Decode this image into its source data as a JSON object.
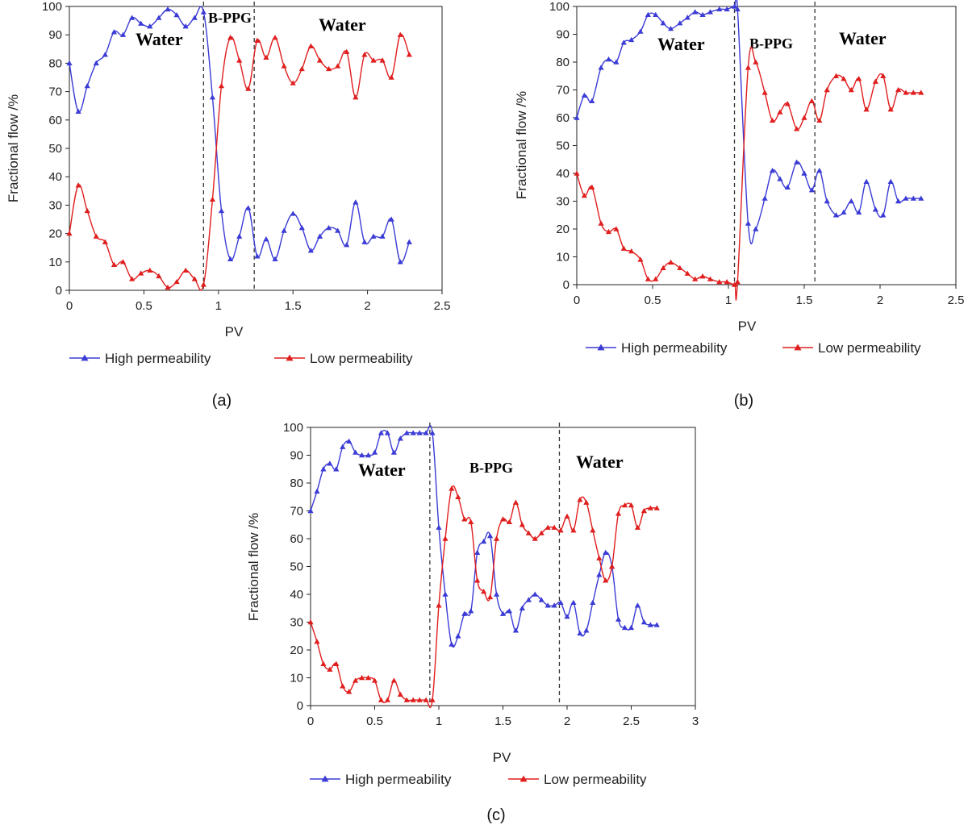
{
  "chart_data": [
    {
      "type": "line",
      "panel_label": "(a)",
      "xlabel": "PV",
      "ylabel": "Fractional flow /%",
      "xlim": [
        0,
        2.5
      ],
      "ylim": [
        0,
        100
      ],
      "x_ticks": [
        "0",
        "0.5",
        "1",
        "1.5",
        "2",
        "2.5"
      ],
      "y_ticks": [
        "0",
        "10",
        "20",
        "30",
        "40",
        "50",
        "60",
        "70",
        "80",
        "90",
        "100"
      ],
      "legend": [
        "High permeability",
        "Low permeability"
      ],
      "region_labels": [
        "Water",
        "B-PPG",
        "Water"
      ],
      "dividers": [
        0.9,
        1.24
      ],
      "series": [
        {
          "name": "High permeability",
          "color": "#3b3bd6",
          "x": [
            0,
            0.06,
            0.12,
            0.18,
            0.24,
            0.3,
            0.36,
            0.42,
            0.48,
            0.54,
            0.6,
            0.66,
            0.72,
            0.78,
            0.84,
            0.9,
            0.96,
            1.02,
            1.08,
            1.14,
            1.2,
            1.26,
            1.32,
            1.38,
            1.44,
            1.5,
            1.56,
            1.62,
            1.68,
            1.74,
            1.8,
            1.86,
            1.92,
            1.98,
            2.04,
            2.1,
            2.16,
            2.22,
            2.28
          ],
          "y": [
            80,
            63,
            72,
            80,
            83,
            91,
            90,
            96,
            94,
            93,
            96,
            99,
            97,
            93,
            96,
            98,
            68,
            28,
            11,
            19,
            29,
            12,
            18,
            11,
            21,
            27,
            22,
            14,
            19,
            22,
            21,
            16,
            31,
            17,
            19,
            19,
            25,
            10,
            17
          ]
        },
        {
          "name": "Low permeability",
          "color": "#e01e1e",
          "x": [
            0,
            0.06,
            0.12,
            0.18,
            0.24,
            0.3,
            0.36,
            0.42,
            0.48,
            0.54,
            0.6,
            0.66,
            0.72,
            0.78,
            0.84,
            0.9,
            0.96,
            1.02,
            1.08,
            1.14,
            1.2,
            1.26,
            1.32,
            1.38,
            1.44,
            1.5,
            1.56,
            1.62,
            1.68,
            1.74,
            1.8,
            1.86,
            1.92,
            1.98,
            2.04,
            2.1,
            2.16,
            2.22,
            2.28
          ],
          "y": [
            20,
            37,
            28,
            19,
            17,
            9,
            10,
            4,
            6,
            7,
            5,
            1,
            3,
            7,
            4,
            2,
            32,
            72,
            89,
            81,
            71,
            88,
            82,
            89,
            79,
            73,
            78,
            86,
            81,
            78,
            79,
            84,
            68,
            83,
            81,
            81,
            75,
            90,
            83
          ]
        }
      ]
    },
    {
      "type": "line",
      "panel_label": "(b)",
      "xlabel": "PV",
      "ylabel": "Fractional flow /%",
      "xlim": [
        0,
        2.5
      ],
      "ylim": [
        0,
        100
      ],
      "x_ticks": [
        "0",
        "0.5",
        "1",
        "1.5",
        "2",
        "2.5"
      ],
      "y_ticks": [
        "0",
        "10",
        "20",
        "30",
        "40",
        "50",
        "60",
        "70",
        "80",
        "90",
        "100"
      ],
      "legend": [
        "High permeability",
        "Low permeability"
      ],
      "region_labels": [
        "Water",
        "B-PPG",
        "Water"
      ],
      "dividers": [
        1.04,
        1.57
      ],
      "series": [
        {
          "name": "High permeability",
          "color": "#3b3bd6",
          "x": [
            0,
            0.05,
            0.1,
            0.16,
            0.21,
            0.26,
            0.31,
            0.36,
            0.42,
            0.47,
            0.52,
            0.57,
            0.62,
            0.68,
            0.73,
            0.78,
            0.83,
            0.88,
            0.94,
            0.99,
            1.04,
            1.06,
            1.13,
            1.18,
            1.24,
            1.29,
            1.34,
            1.39,
            1.45,
            1.5,
            1.55,
            1.6,
            1.65,
            1.71,
            1.76,
            1.81,
            1.86,
            1.91,
            1.97,
            2.02,
            2.07,
            2.12,
            2.17,
            2.22,
            2.27
          ],
          "y": [
            60,
            68,
            66,
            78,
            81,
            80,
            87,
            88,
            91,
            97,
            97,
            94,
            92,
            94,
            96,
            98,
            97,
            98,
            99,
            99,
            100,
            99,
            22,
            20,
            31,
            41,
            38,
            35,
            44,
            40,
            34,
            41,
            30,
            25,
            26,
            30,
            26,
            37,
            27,
            25,
            37,
            30,
            31,
            31,
            31
          ]
        },
        {
          "name": "Low permeability",
          "color": "#e01e1e",
          "x": [
            0,
            0.05,
            0.1,
            0.16,
            0.21,
            0.26,
            0.31,
            0.36,
            0.42,
            0.47,
            0.52,
            0.57,
            0.62,
            0.68,
            0.73,
            0.78,
            0.83,
            0.88,
            0.94,
            0.99,
            1.04,
            1.06,
            1.13,
            1.18,
            1.24,
            1.29,
            1.34,
            1.39,
            1.45,
            1.5,
            1.55,
            1.6,
            1.65,
            1.71,
            1.76,
            1.81,
            1.86,
            1.91,
            1.97,
            2.02,
            2.07,
            2.12,
            2.17,
            2.22,
            2.27
          ],
          "y": [
            40,
            32,
            35,
            22,
            19,
            20,
            13,
            12,
            9,
            2,
            2,
            6,
            8,
            6,
            4,
            2,
            3,
            2,
            1,
            1,
            0,
            1,
            78,
            80,
            69,
            59,
            62,
            65,
            56,
            60,
            66,
            59,
            70,
            75,
            74,
            70,
            74,
            63,
            73,
            75,
            63,
            70,
            69,
            69,
            69
          ]
        }
      ]
    },
    {
      "type": "line",
      "panel_label": "(c)",
      "xlabel": "PV",
      "ylabel": "Fractional flow /%",
      "xlim": [
        0,
        3
      ],
      "ylim": [
        0,
        100
      ],
      "x_ticks": [
        "0",
        "0.5",
        "1",
        "1.5",
        "2",
        "2.5",
        "3"
      ],
      "y_ticks": [
        "0",
        "10",
        "20",
        "30",
        "40",
        "50",
        "60",
        "70",
        "80",
        "90",
        "100"
      ],
      "legend": [
        "High permeability",
        "Low permeability"
      ],
      "region_labels": [
        "Water",
        "B-PPG",
        "Water"
      ],
      "dividers": [
        0.93,
        1.94
      ],
      "series": [
        {
          "name": "High permeability",
          "color": "#3b3bd6",
          "x": [
            0,
            0.05,
            0.1,
            0.15,
            0.2,
            0.25,
            0.3,
            0.35,
            0.4,
            0.45,
            0.5,
            0.55,
            0.6,
            0.65,
            0.7,
            0.75,
            0.8,
            0.85,
            0.9,
            0.95,
            1.0,
            1.05,
            1.1,
            1.15,
            1.2,
            1.25,
            1.3,
            1.35,
            1.4,
            1.45,
            1.5,
            1.55,
            1.6,
            1.65,
            1.7,
            1.75,
            1.8,
            1.85,
            1.9,
            1.95,
            2.0,
            2.05,
            2.1,
            2.15,
            2.2,
            2.25,
            2.3,
            2.35,
            2.4,
            2.45,
            2.5,
            2.55,
            2.6,
            2.65,
            2.7
          ],
          "y": [
            70,
            77,
            85,
            87,
            85,
            93,
            95,
            91,
            90,
            90,
            91,
            98,
            98,
            91,
            96,
            98,
            98,
            98,
            98,
            98,
            64,
            40,
            22,
            25,
            33,
            34,
            55,
            59,
            61,
            40,
            33,
            34,
            27,
            35,
            38,
            40,
            38,
            36,
            36,
            37,
            32,
            37,
            26,
            27,
            37,
            47,
            55,
            50,
            31,
            28,
            28,
            36,
            30,
            29,
            29
          ]
        },
        {
          "name": "Low permeability",
          "color": "#e01e1e",
          "x": [
            0,
            0.05,
            0.1,
            0.15,
            0.2,
            0.25,
            0.3,
            0.35,
            0.4,
            0.45,
            0.5,
            0.55,
            0.6,
            0.65,
            0.7,
            0.75,
            0.8,
            0.85,
            0.9,
            0.95,
            1.0,
            1.05,
            1.1,
            1.15,
            1.2,
            1.25,
            1.3,
            1.35,
            1.4,
            1.45,
            1.5,
            1.55,
            1.6,
            1.65,
            1.7,
            1.75,
            1.8,
            1.85,
            1.9,
            1.95,
            2.0,
            2.05,
            2.1,
            2.15,
            2.2,
            2.25,
            2.3,
            2.35,
            2.4,
            2.45,
            2.5,
            2.55,
            2.6,
            2.65,
            2.7
          ],
          "y": [
            30,
            23,
            15,
            13,
            15,
            7,
            5,
            9,
            10,
            10,
            9,
            2,
            2,
            9,
            4,
            2,
            2,
            2,
            2,
            2,
            36,
            60,
            78,
            75,
            67,
            66,
            45,
            41,
            39,
            60,
            67,
            66,
            73,
            65,
            62,
            60,
            62,
            64,
            64,
            63,
            68,
            63,
            74,
            73,
            63,
            53,
            45,
            50,
            69,
            72,
            72,
            64,
            70,
            71,
            71
          ]
        }
      ]
    }
  ]
}
